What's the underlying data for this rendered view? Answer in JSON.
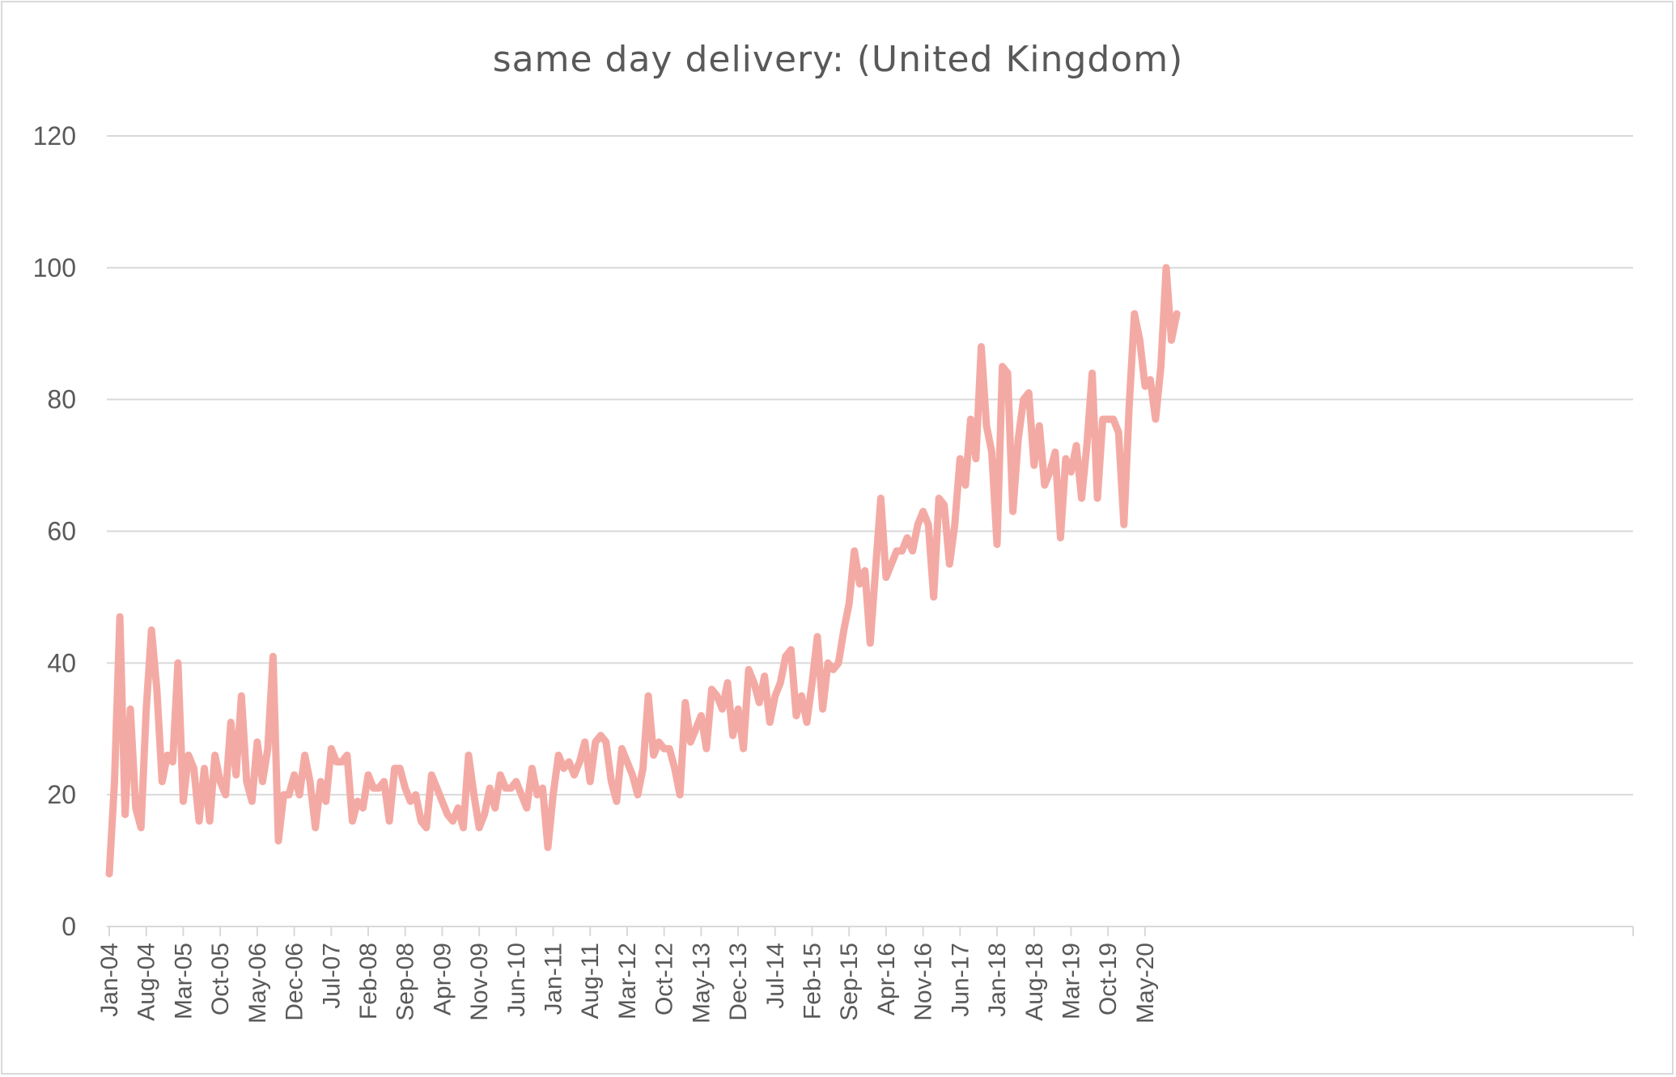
{
  "chart_data": {
    "type": "line",
    "title": "same day delivery: (United Kingdom)",
    "xlabel": "",
    "ylabel": "",
    "ylim": [
      0,
      120
    ],
    "y_ticks": [
      0,
      20,
      40,
      60,
      80,
      100,
      120
    ],
    "x_tick_labels": [
      "Jan-04",
      "Aug-04",
      "Mar-05",
      "Oct-05",
      "May-06",
      "Dec-06",
      "Jul-07",
      "Feb-08",
      "Sep-08",
      "Apr-09",
      "Nov-09",
      "Jun-10",
      "Jan-11",
      "Aug-11",
      "Mar-12",
      "Oct-12",
      "May-13",
      "Dec-13",
      "Jul-14",
      "Feb-15",
      "Sep-15",
      "Apr-16",
      "Nov-16",
      "Jun-17",
      "Jan-18",
      "Aug-18",
      "Mar-19",
      "Oct-19",
      "May-20"
    ],
    "grid": true,
    "legend": "none",
    "line_color": "#f4aaa4",
    "grid_color": "#d9d9d9",
    "text_color": "#595959",
    "series": [
      {
        "values": [
          8,
          22,
          47,
          17,
          33,
          18,
          15,
          33,
          45,
          36,
          22,
          26,
          25,
          40,
          19,
          26,
          24,
          16,
          24,
          16,
          26,
          22,
          20,
          31,
          23,
          35,
          22,
          19,
          28,
          22,
          27,
          41,
          13,
          20,
          20,
          23,
          20,
          26,
          22,
          15,
          22,
          19,
          27,
          25,
          25,
          26,
          16,
          19,
          18,
          23,
          21,
          21,
          22,
          16,
          24,
          24,
          21,
          19,
          20,
          16,
          15,
          23,
          21,
          19,
          17,
          16,
          18,
          15,
          26,
          20,
          15,
          17,
          21,
          18,
          23,
          21,
          21,
          22,
          20,
          18,
          24,
          20,
          21,
          12,
          20,
          26,
          24,
          25,
          23,
          25,
          28,
          22,
          28,
          29,
          28,
          22,
          19,
          27,
          25,
          23,
          20,
          24,
          35,
          26,
          28,
          27,
          27,
          24,
          20,
          34,
          28,
          30,
          32,
          27,
          36,
          35,
          33,
          37,
          29,
          33,
          27,
          39,
          37,
          34,
          38,
          31,
          35,
          37,
          41,
          42,
          32,
          35,
          31,
          37,
          44,
          33,
          40,
          39,
          40,
          45,
          49,
          57,
          52,
          54,
          43,
          54,
          65,
          53,
          55,
          57,
          57,
          59,
          57,
          61,
          63,
          61,
          50,
          65,
          64,
          55,
          61,
          71,
          67,
          77,
          71,
          88,
          76,
          72,
          58,
          85,
          84,
          63,
          74,
          80,
          81,
          70,
          76,
          67,
          69,
          72,
          59,
          71,
          69,
          73,
          65,
          73,
          84,
          65,
          77,
          77,
          77,
          75,
          61,
          79,
          93,
          89,
          82,
          83,
          77,
          85,
          100,
          89,
          93
        ]
      }
    ]
  }
}
